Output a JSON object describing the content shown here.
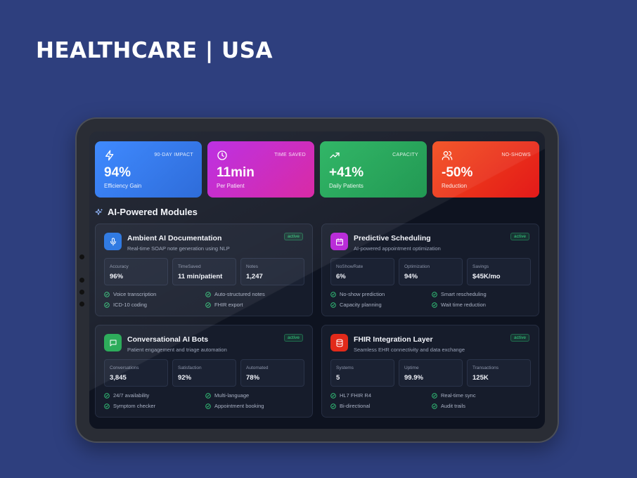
{
  "headline": "HEALTHCARE |  USA",
  "colors": {
    "background": "#2e3f7e",
    "active_badge": "#35d07f"
  },
  "stats": [
    {
      "icon": "lightning-icon",
      "tag": "90-DAY IMPACT",
      "value": "94%",
      "label": "Efficiency Gain"
    },
    {
      "icon": "clock-icon",
      "tag": "TIME SAVED",
      "value": "11min",
      "label": "Per Patient"
    },
    {
      "icon": "trending-up-icon",
      "tag": "CAPACITY",
      "value": "+41%",
      "label": "Daily Patients"
    },
    {
      "icon": "users-icon",
      "tag": "NO-SHOWS",
      "value": "-50%",
      "label": "Reduction"
    }
  ],
  "section_title": "AI-Powered Modules",
  "modules": [
    {
      "icon": "microphone-icon",
      "title": "Ambient AI Documentation",
      "subtitle": "Real-time SOAP note generation using NLP",
      "status": "active",
      "metrics": [
        {
          "label": "Accuracy",
          "value": "96%"
        },
        {
          "label": "TimeSaved",
          "value": "11 min/patient"
        },
        {
          "label": "Notes",
          "value": "1,247"
        }
      ],
      "features": [
        "Voice transcription",
        "Auto-structured notes",
        "ICD-10 coding",
        "FHIR export"
      ]
    },
    {
      "icon": "calendar-icon",
      "title": "Predictive Scheduling",
      "subtitle": "AI-powered appointment optimization",
      "status": "active",
      "metrics": [
        {
          "label": "NoShowRate",
          "value": "6%"
        },
        {
          "label": "Optimization",
          "value": "94%"
        },
        {
          "label": "Savings",
          "value": "$45K/mo"
        }
      ],
      "features": [
        "No-show prediction",
        "Smart rescheduling",
        "Capacity planning",
        "Wait time reduction"
      ]
    },
    {
      "icon": "chat-icon",
      "title": "Conversational AI Bots",
      "subtitle": "Patient engagement and triage automation",
      "status": "active",
      "metrics": [
        {
          "label": "Conversations",
          "value": "3,845"
        },
        {
          "label": "Satisfaction",
          "value": "92%"
        },
        {
          "label": "Automated",
          "value": "78%"
        }
      ],
      "features": [
        "24/7 availability",
        "Multi-language",
        "Symptom checker",
        "Appointment booking"
      ]
    },
    {
      "icon": "database-icon",
      "title": "FHIR Integration Layer",
      "subtitle": "Seamless EHR connectivity and data exchange",
      "status": "active",
      "metrics": [
        {
          "label": "Systems",
          "value": "5"
        },
        {
          "label": "Uptime",
          "value": "99.9%"
        },
        {
          "label": "Transactions",
          "value": "125K"
        }
      ],
      "features": [
        "HL7 FHIR R4",
        "Real-time sync",
        "Bi-directional",
        "Audit trails"
      ]
    }
  ]
}
